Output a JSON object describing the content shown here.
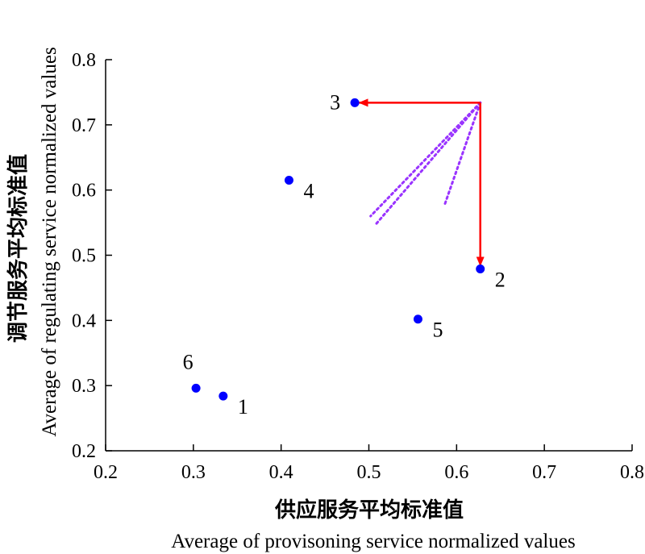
{
  "chart_data": {
    "type": "scatter",
    "xlabel_cn": "供应服务平均标准值",
    "xlabel_en": "Average of provisoning service normalized values",
    "ylabel_cn": "调节服务平均标准值",
    "ylabel_en": "Average of regulating service normalized values",
    "xlim": [
      0.2,
      0.8
    ],
    "ylim": [
      0.2,
      0.8
    ],
    "xticks": [
      "0.2",
      "0.3",
      "0.4",
      "0.5",
      "0.6",
      "0.7",
      "0.8"
    ],
    "yticks": [
      "0.2",
      "0.3",
      "0.4",
      "0.5",
      "0.6",
      "0.7",
      "0.8"
    ],
    "grid": false,
    "point_color": "#0000ff",
    "points": [
      {
        "label": "1",
        "x": 0.334,
        "y": 0.284,
        "label_pos": "right-below"
      },
      {
        "label": "2",
        "x": 0.627,
        "y": 0.479,
        "label_pos": "right-below"
      },
      {
        "label": "3",
        "x": 0.484,
        "y": 0.734,
        "label_pos": "left"
      },
      {
        "label": "4",
        "x": 0.409,
        "y": 0.615,
        "label_pos": "right-below"
      },
      {
        "label": "5",
        "x": 0.556,
        "y": 0.402,
        "label_pos": "right-below"
      },
      {
        "label": "6",
        "x": 0.303,
        "y": 0.296,
        "label_pos": "above-left"
      }
    ],
    "annotations": {
      "arrow_color": "#ff0000",
      "arrow_origin": {
        "x": 0.627,
        "y": 0.734
      },
      "arrows": [
        {
          "to": {
            "x": 0.489,
            "y": 0.734
          }
        },
        {
          "to": {
            "x": 0.627,
            "y": 0.484
          }
        }
      ],
      "dotted_color": "#9933ff",
      "dotted_lines": [
        {
          "from": {
            "x": 0.627,
            "y": 0.734
          },
          "to": {
            "x": 0.507,
            "y": 0.546
          }
        },
        {
          "from": {
            "x": 0.627,
            "y": 0.734
          },
          "to": {
            "x": 0.502,
            "y": 0.56
          }
        },
        {
          "from": {
            "x": 0.627,
            "y": 0.734
          },
          "to": {
            "x": 0.586,
            "y": 0.576
          }
        }
      ]
    }
  }
}
